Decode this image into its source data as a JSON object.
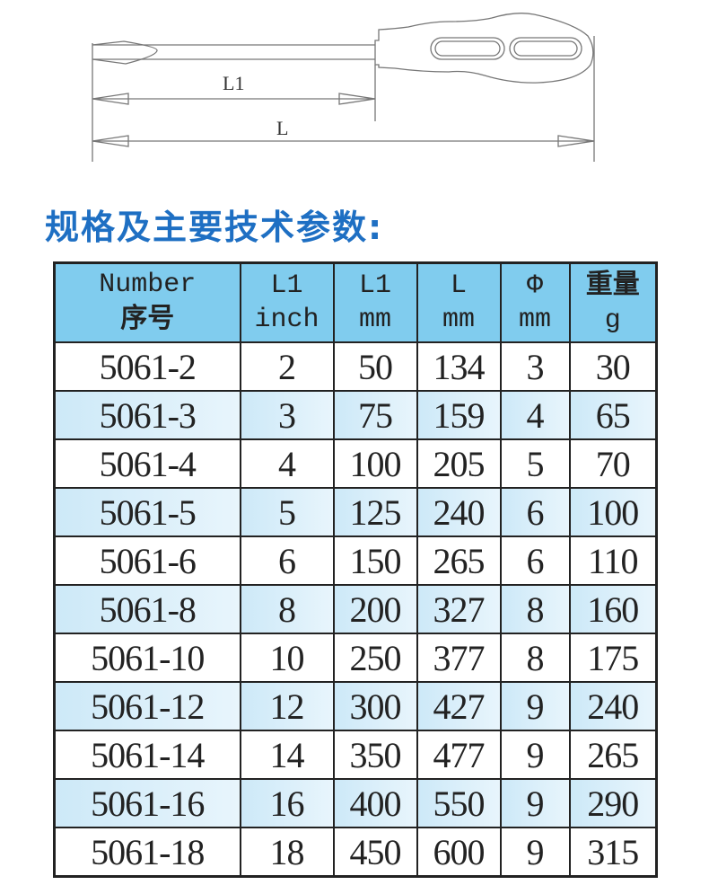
{
  "drawing": {
    "label_l1": "L1",
    "label_l": "L"
  },
  "title": "规格及主要技术参数:",
  "colors": {
    "title": "#1e6fc3",
    "header_bg": "#80ccee",
    "alt_row_bg": "#cde9f8"
  },
  "table": {
    "headers": [
      {
        "line1": "Number",
        "line2": "序号"
      },
      {
        "line1": "L1",
        "line2": "inch"
      },
      {
        "line1": "L1",
        "line2": "mm"
      },
      {
        "line1": "L",
        "line2": "mm"
      },
      {
        "line1": "Φ",
        "line2": "mm"
      },
      {
        "line1": "重量",
        "line2": "g"
      }
    ],
    "rows": [
      [
        "5061-2",
        "2",
        "50",
        "134",
        "3",
        "30"
      ],
      [
        "5061-3",
        "3",
        "75",
        "159",
        "4",
        "65"
      ],
      [
        "5061-4",
        "4",
        "100",
        "205",
        "5",
        "70"
      ],
      [
        "5061-5",
        "5",
        "125",
        "240",
        "6",
        "100"
      ],
      [
        "5061-6",
        "6",
        "150",
        "265",
        "6",
        "110"
      ],
      [
        "5061-8",
        "8",
        "200",
        "327",
        "8",
        "160"
      ],
      [
        "5061-10",
        "10",
        "250",
        "377",
        "8",
        "175"
      ],
      [
        "5061-12",
        "12",
        "300",
        "427",
        "9",
        "240"
      ],
      [
        "5061-14",
        "14",
        "350",
        "477",
        "9",
        "265"
      ],
      [
        "5061-16",
        "16",
        "400",
        "550",
        "9",
        "290"
      ],
      [
        "5061-18",
        "18",
        "450",
        "600",
        "9",
        "315"
      ]
    ]
  }
}
